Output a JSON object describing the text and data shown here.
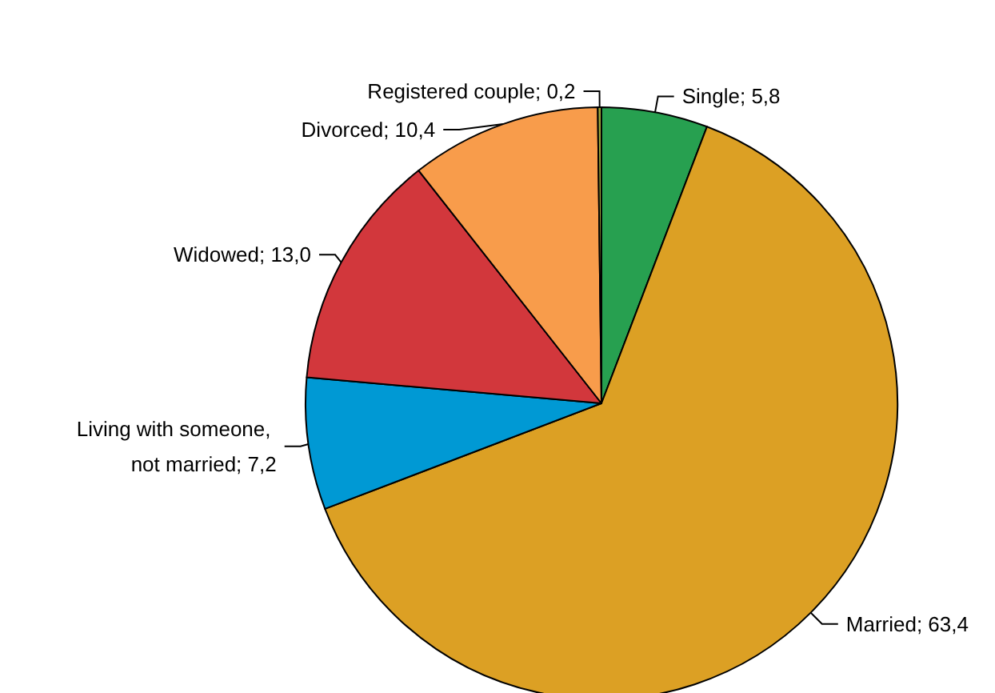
{
  "chart_data": {
    "type": "pie",
    "categories": [
      "Single",
      "Married",
      "Living with someone, not married",
      "Widowed",
      "Divorced",
      "Registered couple"
    ],
    "values": [
      5.8,
      63.4,
      7.2,
      13.0,
      10.4,
      0.2
    ],
    "colors": [
      "#27a050",
      "#dca024",
      "#0099d4",
      "#d2373c",
      "#f89c4b",
      "#9aa53a"
    ],
    "value_labels": [
      "5,8",
      "63,4",
      "7,2",
      "13,0",
      "10,4",
      "0,2"
    ]
  }
}
